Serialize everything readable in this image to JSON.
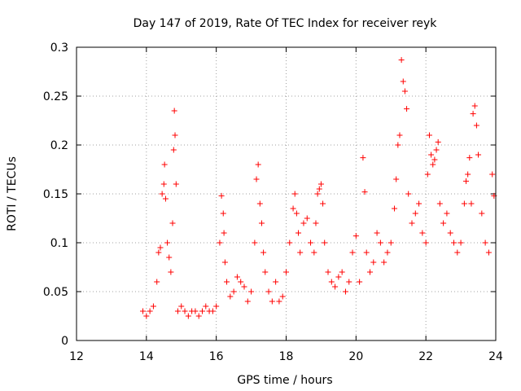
{
  "chart_data": {
    "type": "scatter",
    "title": "Day 147 of 2019, Rate Of TEC Index for receiver reyk",
    "xlabel": "GPS time / hours",
    "ylabel": "ROTI / TECUs",
    "xlim": [
      12,
      24
    ],
    "ylim": [
      0,
      0.3
    ],
    "x_ticks": [
      12,
      14,
      16,
      18,
      20,
      22,
      24
    ],
    "x_tick_labels": [
      "12",
      "14",
      "16",
      "18",
      "20",
      "22",
      "24"
    ],
    "y_ticks": [
      0,
      0.05,
      0.1,
      0.15,
      0.2,
      0.25,
      0.3
    ],
    "y_tick_labels": [
      "0",
      "0.05",
      "0.1",
      "0.15",
      "0.2",
      "0.25",
      "0.3"
    ],
    "grid": true,
    "marker": "+",
    "color": "#ff0000",
    "series": [
      {
        "name": "ROTI",
        "x": [
          13.9,
          14.0,
          14.1,
          14.2,
          14.3,
          14.35,
          14.4,
          14.45,
          14.5,
          14.52,
          14.55,
          14.6,
          14.65,
          14.7,
          14.75,
          14.78,
          14.8,
          14.82,
          14.85,
          14.9,
          15.0,
          15.1,
          15.2,
          15.3,
          15.4,
          15.5,
          15.6,
          15.7,
          15.8,
          15.9,
          16.0,
          16.1,
          16.15,
          16.2,
          16.22,
          16.25,
          16.3,
          16.4,
          16.5,
          16.6,
          16.7,
          16.8,
          16.9,
          17.0,
          17.1,
          17.15,
          17.2,
          17.25,
          17.3,
          17.35,
          17.4,
          17.5,
          17.6,
          17.7,
          17.8,
          17.9,
          18.0,
          18.1,
          18.2,
          18.25,
          18.3,
          18.35,
          18.4,
          18.5,
          18.6,
          18.7,
          18.8,
          18.85,
          18.9,
          18.95,
          19.0,
          19.05,
          19.1,
          19.2,
          19.3,
          19.4,
          19.5,
          19.6,
          19.7,
          19.8,
          19.9,
          20.0,
          20.1,
          20.2,
          20.25,
          20.3,
          20.4,
          20.5,
          20.6,
          20.7,
          20.8,
          20.9,
          21.0,
          21.1,
          21.15,
          21.2,
          21.25,
          21.3,
          21.35,
          21.4,
          21.45,
          21.5,
          21.6,
          21.7,
          21.8,
          21.9,
          22.0,
          22.05,
          22.1,
          22.15,
          22.2,
          22.25,
          22.3,
          22.35,
          22.4,
          22.5,
          22.6,
          22.7,
          22.8,
          22.9,
          23.0,
          23.1,
          23.15,
          23.2,
          23.25,
          23.3,
          23.35,
          23.4,
          23.45,
          23.5,
          23.6,
          23.7,
          23.8,
          23.9,
          23.95
        ],
        "y": [
          0.03,
          0.025,
          0.03,
          0.035,
          0.06,
          0.09,
          0.095,
          0.15,
          0.16,
          0.18,
          0.145,
          0.1,
          0.085,
          0.07,
          0.12,
          0.195,
          0.235,
          0.21,
          0.16,
          0.03,
          0.035,
          0.03,
          0.025,
          0.03,
          0.03,
          0.025,
          0.03,
          0.035,
          0.03,
          0.03,
          0.035,
          0.1,
          0.148,
          0.13,
          0.11,
          0.08,
          0.06,
          0.045,
          0.05,
          0.065,
          0.06,
          0.055,
          0.04,
          0.05,
          0.1,
          0.165,
          0.18,
          0.14,
          0.12,
          0.09,
          0.07,
          0.05,
          0.04,
          0.06,
          0.04,
          0.045,
          0.07,
          0.1,
          0.135,
          0.15,
          0.13,
          0.11,
          0.09,
          0.12,
          0.125,
          0.1,
          0.09,
          0.12,
          0.15,
          0.155,
          0.16,
          0.14,
          0.1,
          0.07,
          0.06,
          0.055,
          0.065,
          0.07,
          0.05,
          0.06,
          0.09,
          0.107,
          0.06,
          0.187,
          0.152,
          0.09,
          0.07,
          0.08,
          0.11,
          0.1,
          0.08,
          0.09,
          0.1,
          0.135,
          0.165,
          0.2,
          0.21,
          0.287,
          0.265,
          0.255,
          0.237,
          0.15,
          0.12,
          0.13,
          0.14,
          0.11,
          0.1,
          0.17,
          0.21,
          0.19,
          0.18,
          0.185,
          0.195,
          0.203,
          0.14,
          0.12,
          0.13,
          0.11,
          0.1,
          0.09,
          0.1,
          0.14,
          0.163,
          0.17,
          0.187,
          0.14,
          0.232,
          0.24,
          0.22,
          0.19,
          0.13,
          0.1,
          0.09,
          0.17,
          0.148
        ]
      }
    ]
  }
}
